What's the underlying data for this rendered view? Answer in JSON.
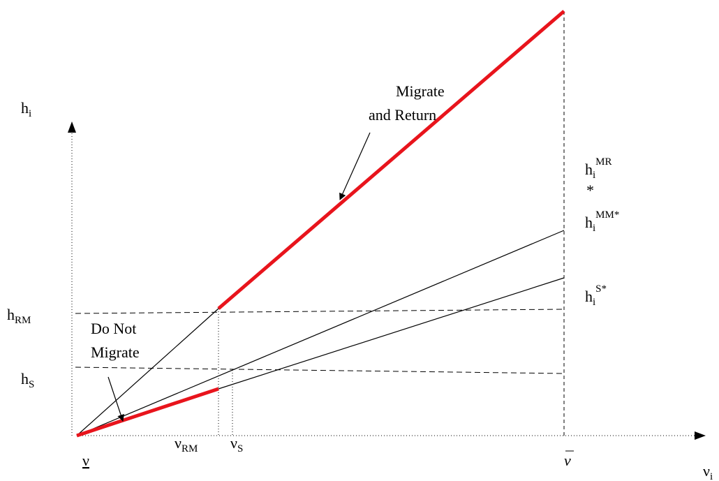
{
  "axes": {
    "y_label": {
      "base": "h",
      "sub": "i"
    },
    "x_label": {
      "base": "ν",
      "sub": "i"
    }
  },
  "x_marks": [
    {
      "base": "ν"
    },
    {
      "base": "ν",
      "sub": "RM"
    },
    {
      "base": "ν",
      "sub": "S"
    },
    {
      "base": "ν"
    }
  ],
  "y_marks": [
    {
      "base": "h",
      "sub": "RM"
    },
    {
      "base": "h",
      "sub": "S"
    }
  ],
  "curves": [
    {
      "base": "h",
      "sub": "i",
      "sup": "MR",
      "star": "*"
    },
    {
      "base": "h",
      "sub": "i",
      "sup": "MM*"
    },
    {
      "base": "h",
      "sub": "i",
      "sup": "S*"
    }
  ],
  "annotations": [
    {
      "lines": [
        "Migrate",
        "and Return"
      ]
    },
    {
      "lines": [
        "Do Not",
        "Migrate"
      ]
    }
  ]
}
